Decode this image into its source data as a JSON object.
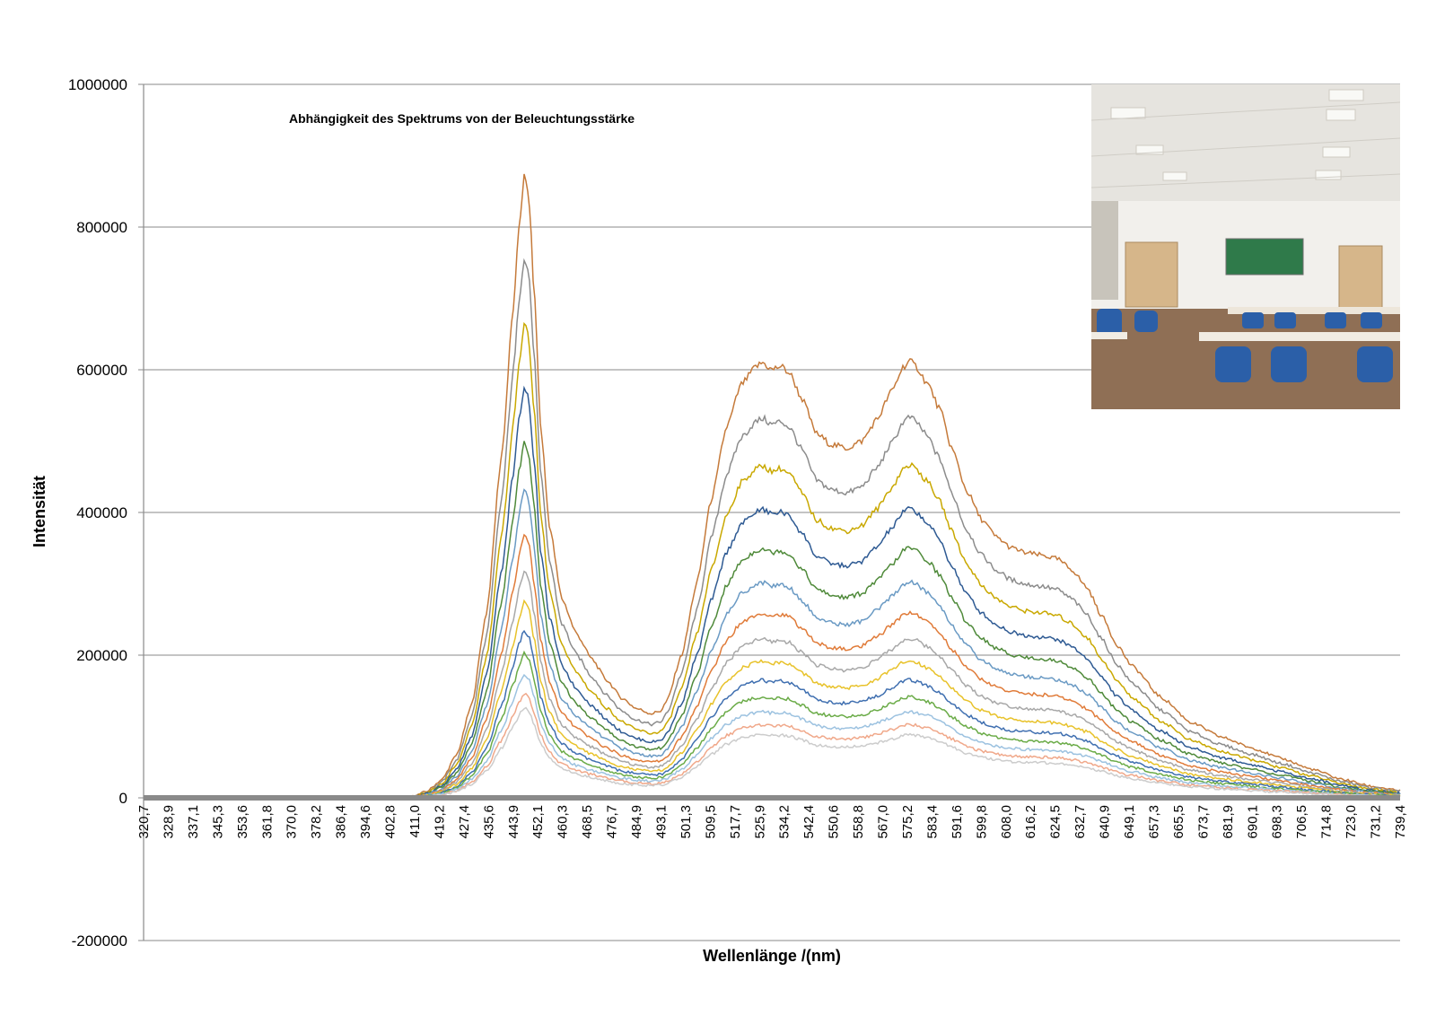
{
  "chart_data": {
    "type": "line",
    "title": "Abhängigkeit des Spektrums von der Beleuchtungsstärke",
    "xlabel": "Wellenlänge /(nm)",
    "ylabel": "Intensität",
    "ylim": [
      -200000,
      1000000
    ],
    "yticks": [
      -200000,
      0,
      200000,
      400000,
      600000,
      800000,
      1000000
    ],
    "ytick_labels": [
      "-200000",
      "0",
      "200000",
      "400000",
      "600000",
      "800000",
      "1000000"
    ],
    "xlim": [
      320.7,
      739.4
    ],
    "xtick_labels": [
      "320,7",
      "328,9",
      "337,1",
      "345,3",
      "353,6",
      "361,8",
      "370,0",
      "378,2",
      "386,4",
      "394,6",
      "402,8",
      "411,0",
      "419,2",
      "427,4",
      "435,6",
      "443,9",
      "452,1",
      "460,3",
      "468,5",
      "476,7",
      "484,9",
      "493,1",
      "501,3",
      "509,5",
      "517,7",
      "525,9",
      "534,2",
      "542,4",
      "550,6",
      "558,8",
      "567,0",
      "575,2",
      "583,4",
      "591,6",
      "599,8",
      "608,0",
      "616,2",
      "624,5",
      "632,7",
      "640,9",
      "649,1",
      "657,3",
      "665,5",
      "673,7",
      "681,9",
      "690,1",
      "698,3",
      "706,5",
      "714,8",
      "723,0",
      "731,2",
      "739,4"
    ],
    "grid": true,
    "legend": "none",
    "base_shape": {
      "x": [
        320.7,
        405,
        411,
        415,
        420,
        425,
        430,
        435,
        440,
        444,
        446,
        447.5,
        449,
        451,
        453,
        456,
        460,
        465,
        470,
        475,
        480,
        485,
        490,
        493,
        495,
        500,
        505,
        510,
        515,
        520,
        525,
        527,
        530,
        533,
        536,
        540,
        545,
        550,
        555,
        560,
        565,
        570,
        574,
        576,
        578,
        582,
        586,
        590,
        595,
        600,
        605,
        610,
        615,
        620,
        625,
        630,
        635,
        640,
        645,
        650,
        660,
        670,
        680,
        690,
        700,
        710,
        720,
        730,
        739.4
      ],
      "y": [
        0,
        0,
        3000,
        9000,
        25000,
        60000,
        130000,
        260000,
        480000,
        690000,
        810000,
        870000,
        845000,
        700000,
        520000,
        380000,
        280000,
        230000,
        195000,
        165000,
        140000,
        125000,
        118000,
        122000,
        135000,
        200000,
        300000,
        420000,
        520000,
        580000,
        605000,
        610000,
        600000,
        605000,
        595000,
        560000,
        510000,
        495000,
        490000,
        500000,
        530000,
        570000,
        605000,
        612000,
        605000,
        580000,
        545000,
        490000,
        430000,
        390000,
        365000,
        350000,
        343000,
        340000,
        335000,
        320000,
        295000,
        255000,
        215000,
        185000,
        140000,
        105000,
        85000,
        70000,
        55000,
        40000,
        26000,
        16000,
        10000
      ]
    },
    "series": [
      {
        "scale": 1.0,
        "color": "#c57a3a",
        "values_note": ""
      },
      {
        "scale": 0.872,
        "color": "#8c8c8c"
      },
      {
        "scale": 0.763,
        "color": "#c9a800"
      },
      {
        "scale": 0.663,
        "color": "#2e5a93"
      },
      {
        "scale": 0.573,
        "color": "#4f8a3a"
      },
      {
        "scale": 0.495,
        "color": "#6a9ac4"
      },
      {
        "scale": 0.425,
        "color": "#e07b39"
      },
      {
        "scale": 0.365,
        "color": "#a8a8a8"
      },
      {
        "scale": 0.314,
        "color": "#e8c22a"
      },
      {
        "scale": 0.27,
        "color": "#3f6fb0"
      },
      {
        "scale": 0.232,
        "color": "#6aab47"
      },
      {
        "scale": 0.198,
        "color": "#9cc2e0"
      },
      {
        "scale": 0.168,
        "color": "#f0a88a"
      },
      {
        "scale": 0.145,
        "color": "#cccccc"
      }
    ]
  },
  "inset_photo": {
    "accent_colors": [
      "#e9e6e0",
      "#2f7a4a",
      "#2b5fa8",
      "#c9a77a",
      "#b9b2a8"
    ]
  }
}
